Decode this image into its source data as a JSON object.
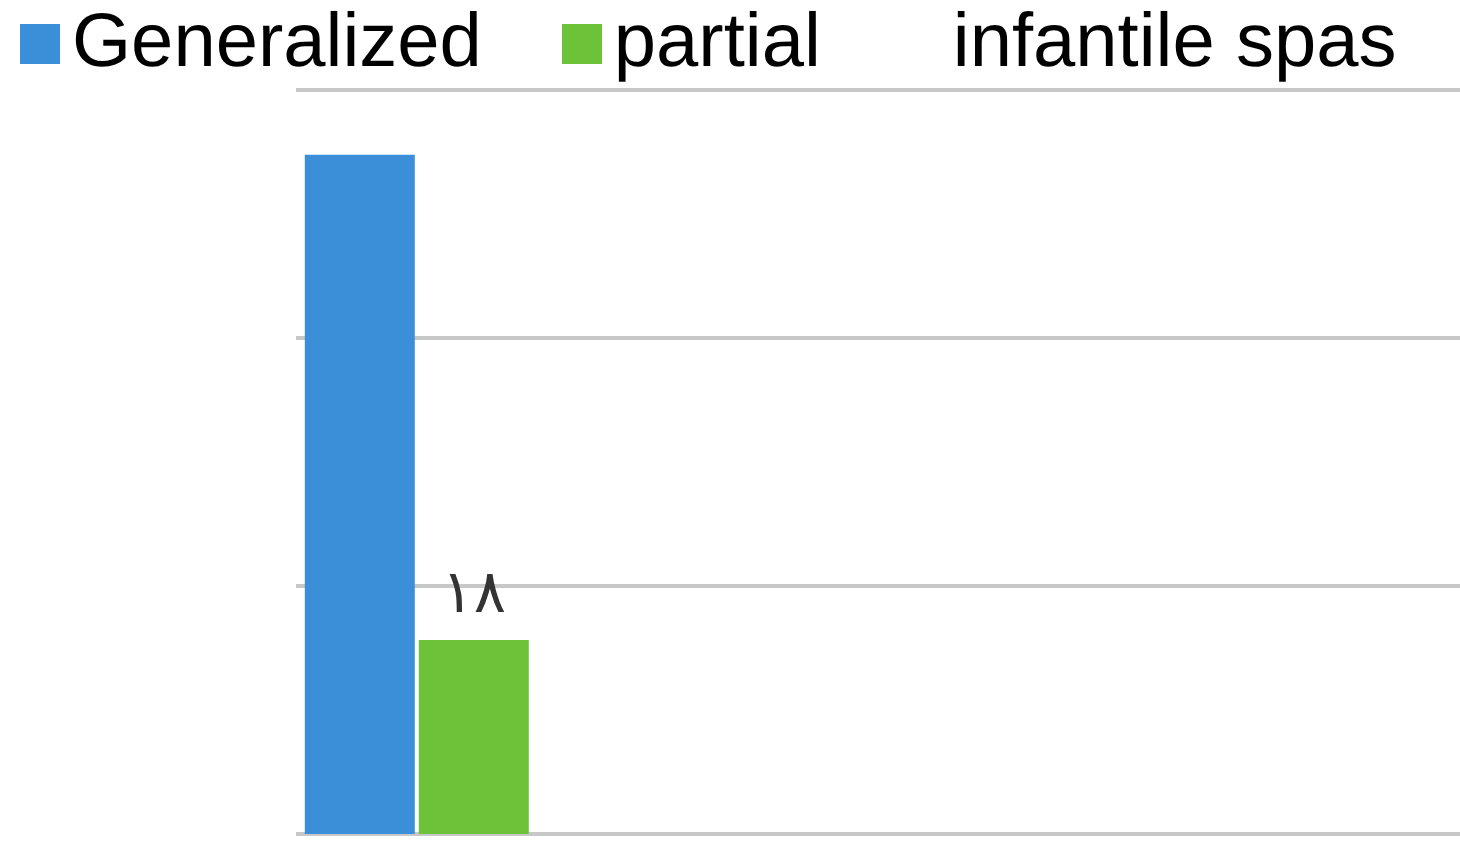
{
  "chart_data": {
    "type": "bar",
    "categories": [
      null
    ],
    "series": [
      {
        "name": "Generalized",
        "color": "#3a8fd8",
        "values": [
          63
        ],
        "value_labels": [
          null
        ]
      },
      {
        "name": "partial",
        "color": "#6cc33a",
        "values": [
          18
        ],
        "value_labels": [
          "١٨"
        ]
      }
    ],
    "annotations": [
      "infantile spas"
    ],
    "ylim": [
      0,
      69
    ],
    "yticks": [
      {
        "value": 0,
        "label": null
      },
      {
        "value": 23,
        "label": null
      },
      {
        "value": 46,
        "label": null
      },
      {
        "value": 69,
        "label": null
      }
    ],
    "grid": "y",
    "legend": "top"
  }
}
